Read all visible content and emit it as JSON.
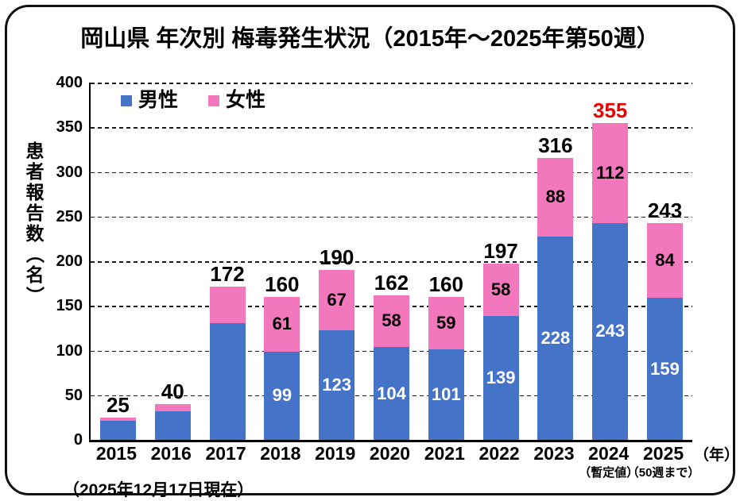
{
  "title": "岡山県 年次別 梅毒発生状況（2015年～2025年第50週）",
  "footnote": "（2025年12月17日現在）",
  "colors": {
    "male": "#4573C8",
    "female": "#F377BC",
    "highlight_total": "#E60000",
    "text": "#000000"
  },
  "legend": [
    {
      "name": "male",
      "label": "男性",
      "color": "#4573C8"
    },
    {
      "name": "female",
      "label": "女性",
      "color": "#F377BC"
    }
  ],
  "chart_data": {
    "type": "bar",
    "stacked": true,
    "title": "岡山県 年次別 梅毒発生状況（2015年～2025年第50週）",
    "ylabel": "患者報告数（名）",
    "x_unit": "（年）",
    "ylim": [
      0,
      400
    ],
    "ytick_step": 50,
    "grid": "dashed-horizontal",
    "legend_position": "top-left-inside",
    "categories": [
      "2015",
      "2016",
      "2017",
      "2018",
      "2019",
      "2020",
      "2021",
      "2022",
      "2023",
      "2024",
      "2025"
    ],
    "category_subnotes": [
      "",
      "",
      "",
      "",
      "",
      "",
      "",
      "",
      "",
      "（暫定値）",
      "（50週まで）"
    ],
    "series": [
      {
        "name": "男性",
        "color": "#4573C8",
        "values": [
          21,
          32,
          131,
          99,
          123,
          104,
          101,
          139,
          228,
          243,
          159
        ],
        "value_labels_shown": [
          "",
          "",
          "",
          "99",
          "123",
          "104",
          "101",
          "139",
          "228",
          "243",
          "159"
        ],
        "label_color": "#FFFFFF"
      },
      {
        "name": "女性",
        "color": "#F377BC",
        "values": [
          4,
          8,
          41,
          61,
          67,
          58,
          59,
          58,
          88,
          112,
          84
        ],
        "value_labels_shown": [
          "",
          "",
          "",
          "61",
          "67",
          "58",
          "59",
          "58",
          "88",
          "112",
          "84"
        ],
        "label_color": "#000000"
      }
    ],
    "totals": {
      "values": [
        25,
        40,
        172,
        160,
        190,
        162,
        160,
        197,
        316,
        355,
        243
      ],
      "colors": [
        "#000000",
        "#000000",
        "#000000",
        "#000000",
        "#000000",
        "#000000",
        "#000000",
        "#000000",
        "#000000",
        "#E60000",
        "#000000"
      ]
    }
  }
}
